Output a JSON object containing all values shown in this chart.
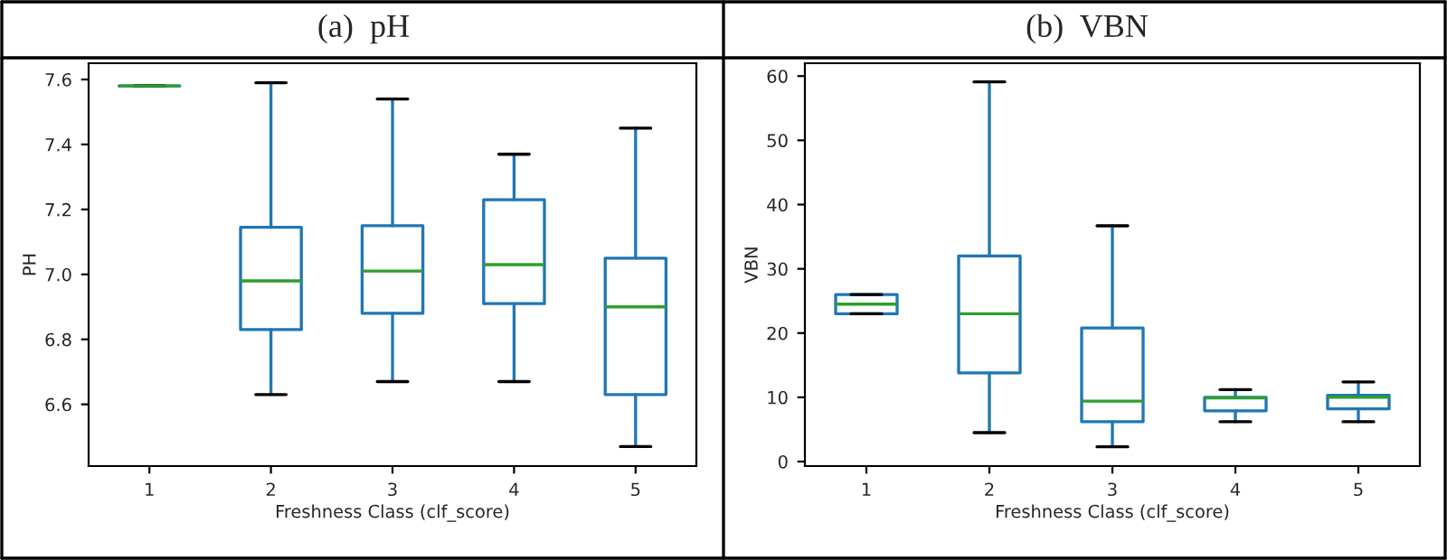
{
  "chart_data": [
    {
      "type": "box",
      "title": "(a)  pH",
      "xlabel": "Freshness Class (clf_score)",
      "ylabel": "PH",
      "categories": [
        "1",
        "2",
        "3",
        "4",
        "5"
      ],
      "series": [
        {
          "color": "#1f77b4",
          "boxes": [
            {
              "low": 7.58,
              "q1": 7.58,
              "median": 7.58,
              "q3": 7.58,
              "high": 7.58
            },
            {
              "low": 6.63,
              "q1": 6.83,
              "median": 6.98,
              "q3": 7.145,
              "high": 7.59
            },
            {
              "low": 6.67,
              "q1": 6.88,
              "median": 7.01,
              "q3": 7.15,
              "high": 7.54
            },
            {
              "low": 6.67,
              "q1": 6.91,
              "median": 7.03,
              "q3": 7.23,
              "high": 7.37
            },
            {
              "low": 6.47,
              "q1": 6.63,
              "median": 6.9,
              "q3": 7.05,
              "high": 7.45
            }
          ]
        }
      ],
      "ylim": [
        6.41,
        7.65
      ],
      "yticks": [
        6.6,
        6.8,
        {
          "value": 7,
          "label": "7.0"
        },
        7.2,
        7.4,
        7.6
      ],
      "grid": false,
      "legend": false
    },
    {
      "type": "box",
      "title": "(b)  VBN",
      "xlabel": "Freshness Class (clf_score)",
      "ylabel": "VBN",
      "categories": [
        "1",
        "2",
        "3",
        "4",
        "5"
      ],
      "series": [
        {
          "color": "#1f77b4",
          "boxes": [
            {
              "low": 23,
              "q1": 23,
              "median": 24.5,
              "q3": 26,
              "high": 26
            },
            {
              "low": 4.5,
              "q1": 13.8,
              "median": 23,
              "q3": 32,
              "high": 59.1
            },
            {
              "low": 2.3,
              "q1": 6.2,
              "median": 9.4,
              "q3": 20.8,
              "high": 36.7
            },
            {
              "low": 6.2,
              "q1": 7.9,
              "median": 9.9,
              "q3": 10,
              "high": 11.2
            },
            {
              "low": 6.2,
              "q1": 8.2,
              "median": 10,
              "q3": 10.3,
              "high": 12.4
            }
          ]
        }
      ],
      "ylim": [
        -0.7,
        62
      ],
      "yticks": [
        0,
        10,
        20,
        30,
        40,
        50,
        60
      ],
      "grid": false,
      "legend": false
    }
  ]
}
